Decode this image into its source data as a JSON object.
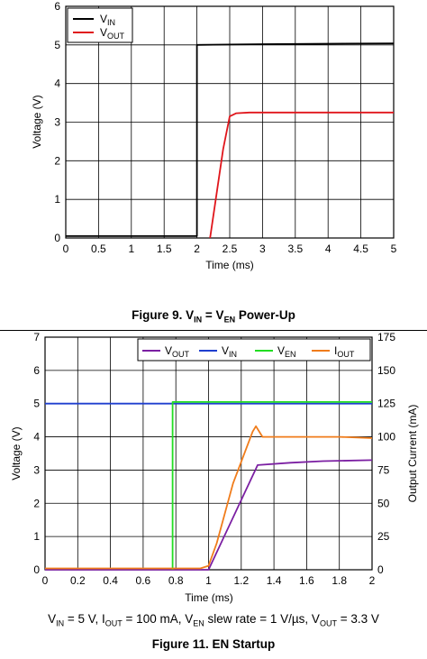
{
  "chart_data": [
    {
      "type": "line",
      "figure": "fig9",
      "title": {
        "pre": "Figure 9. V",
        "sub1": "IN",
        "mid": " = V",
        "sub2": "EN",
        "post": " Power-Up"
      },
      "xlabel": "Time (ms)",
      "ylabel": "Voltage (V)",
      "xlim": [
        0,
        5
      ],
      "ylim": [
        0,
        6
      ],
      "xticks": [
        "0",
        "0.5",
        "1",
        "1.5",
        "2",
        "2.5",
        "3",
        "3.5",
        "4",
        "4.5",
        "5"
      ],
      "yticks": [
        "0",
        "1",
        "2",
        "3",
        "4",
        "5",
        "6"
      ],
      "grid": true,
      "legend_position": "top-left",
      "series": [
        {
          "name": "VIN",
          "legend_main": "V",
          "legend_sub": "IN",
          "color": "#000000",
          "x": [
            0,
            2.0,
            2.0,
            3.0,
            4.0,
            5.0
          ],
          "y": [
            0.05,
            0.05,
            5.0,
            5.02,
            5.03,
            5.04
          ]
        },
        {
          "name": "VOUT",
          "legend_main": "V",
          "legend_sub": "OUT",
          "color": "#e0151b",
          "x": [
            2.2,
            2.4,
            2.5,
            2.6,
            2.8,
            3.0,
            4.0,
            5.0
          ],
          "y": [
            0,
            2.3,
            3.15,
            3.23,
            3.25,
            3.25,
            3.25,
            3.25
          ]
        }
      ]
    },
    {
      "type": "line",
      "figure": "fig11",
      "title": "Figure 11. EN Startup",
      "xlabel": "Time (ms)",
      "ylabel": "Voltage (V)",
      "y2label": "Output Current (mA)",
      "xlim": [
        0,
        2
      ],
      "ylim": [
        0,
        7
      ],
      "y2lim": [
        0,
        175
      ],
      "xticks": [
        "0",
        "0.2",
        "0.4",
        "0.6",
        "0.8",
        "1",
        "1.2",
        "1.4",
        "1.6",
        "1.8",
        "2"
      ],
      "yticks": [
        "0",
        "1",
        "2",
        "3",
        "4",
        "5",
        "6",
        "7"
      ],
      "y2ticks": [
        "0",
        "25",
        "50",
        "75",
        "100",
        "125",
        "150",
        "175"
      ],
      "grid": true,
      "legend_position": "top-right",
      "series": [
        {
          "name": "VOUT",
          "legend_main": "V",
          "legend_sub": "OUT",
          "color": "#7b1fa2",
          "x": [
            0,
            1.0,
            1.3,
            1.5,
            1.7,
            2.0
          ],
          "y": [
            0,
            0,
            3.15,
            3.22,
            3.27,
            3.3
          ]
        },
        {
          "name": "VIN",
          "legend_main": "V",
          "legend_sub": "IN",
          "color": "#1f3fcf",
          "x": [
            0,
            0.5,
            1.0,
            1.5,
            2.0
          ],
          "y": [
            5.0,
            5.0,
            5.0,
            5.0,
            5.0
          ]
        },
        {
          "name": "VEN",
          "legend_main": "V",
          "legend_sub": "EN",
          "color": "#22dd22",
          "x": [
            0.78,
            0.78,
            0.8,
            1.0,
            1.5,
            2.0
          ],
          "y": [
            0,
            5.05,
            5.05,
            5.05,
            5.05,
            5.05
          ]
        },
        {
          "name": "IOUT",
          "legend_main": "I",
          "legend_sub": "OUT",
          "color": "#f07c1b",
          "axis": "right",
          "x": [
            0,
            0.5,
            0.95,
            1.0,
            1.05,
            1.15,
            1.27,
            1.29,
            1.33,
            1.4,
            1.6,
            1.8,
            2.0
          ],
          "y": [
            1,
            1,
            1,
            3,
            20,
            65,
            104,
            108,
            100,
            100,
            100,
            100,
            99
          ]
        }
      ],
      "conditions": {
        "v": "V",
        "vin_sub": "IN",
        "a": " = 5 V, I",
        "iout_sub": "OUT",
        "b": " = 100 mA, V",
        "ven_sub": "EN",
        "c": " slew rate = 1 V/µs, V",
        "vout_sub": "OUT",
        "d": " = 3.3 V"
      }
    }
  ]
}
